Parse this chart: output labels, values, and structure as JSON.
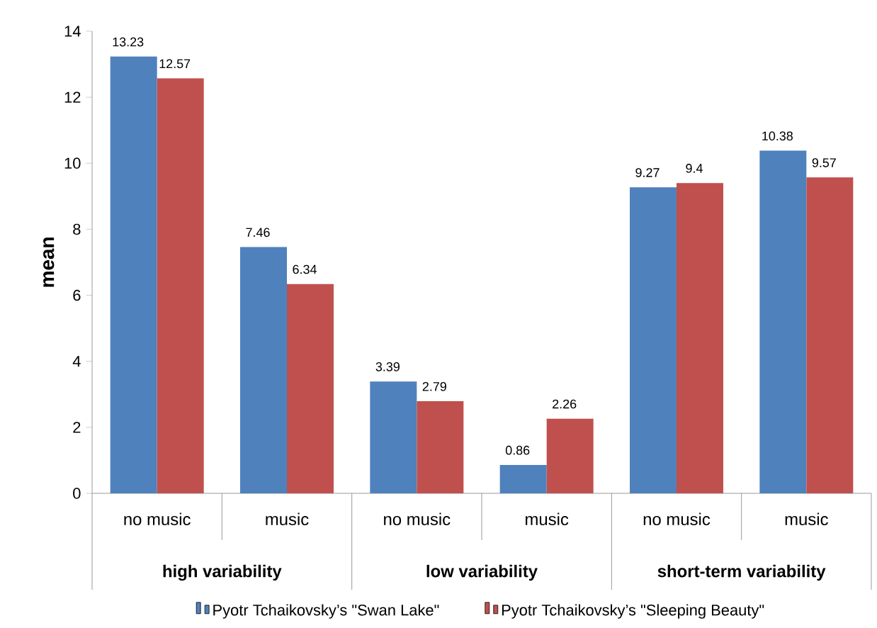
{
  "chart_data": {
    "type": "bar",
    "ylabel": "mean",
    "categories": [
      "no music",
      "music",
      "no music",
      "music",
      "no music",
      "music"
    ],
    "annotations": [
      "high variability",
      "low variability",
      "short-term variability"
    ],
    "series": [
      {
        "name": "Pyotr Tchaikovsky’s \"Swan Lake\"",
        "color": "#4f81bd",
        "values": [
          13.23,
          7.46,
          3.39,
          0.86,
          9.27,
          10.38
        ]
      },
      {
        "name": "Pyotr Tchaikovsky’s \"Sleeping Beauty\"",
        "color": "#c0504d",
        "values": [
          12.57,
          6.34,
          2.79,
          2.26,
          9.4,
          9.57
        ]
      }
    ],
    "ylim": [
      0,
      14
    ],
    "yticks": [
      0,
      2,
      4,
      6,
      8,
      10,
      12,
      14
    ],
    "data_labels": true,
    "grid": false,
    "legend": "bottom"
  }
}
